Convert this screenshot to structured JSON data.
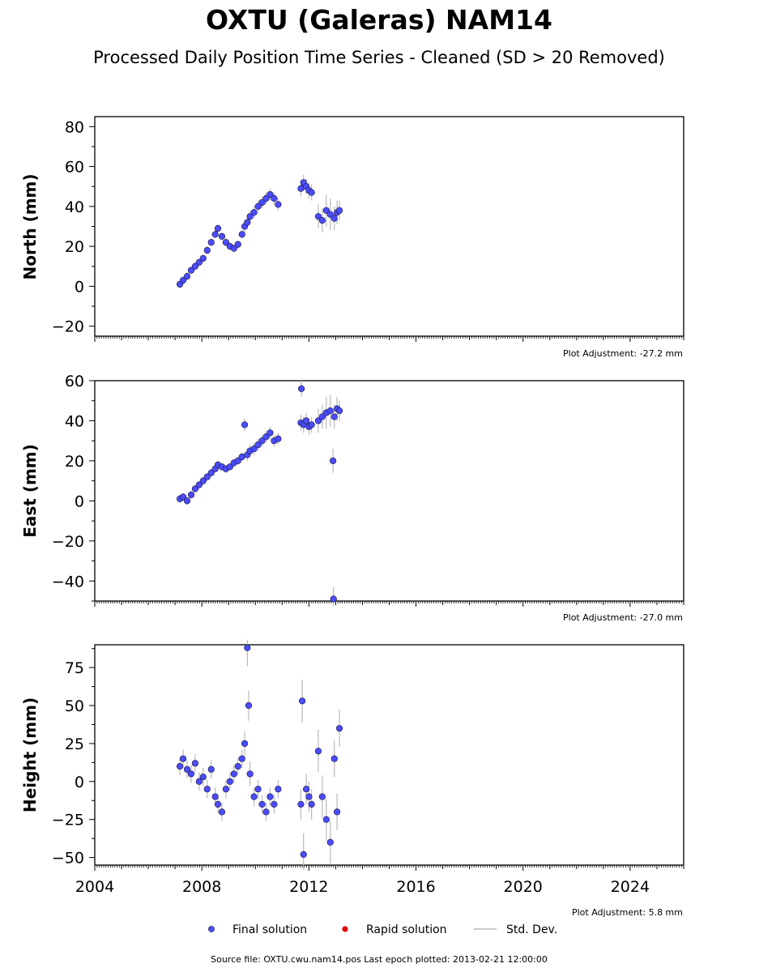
{
  "figure": {
    "title": "OXTU (Galeras) NAM14",
    "subtitle": "Processed Daily Position Time Series - Cleaned (SD > 20 Removed)",
    "source_note": "Source file: OXTU.cwu.nam14.pos  Last epoch plotted: 2013-02-21 12:00:00"
  },
  "legend": {
    "final_label": "Final solution",
    "rapid_label": "Rapid solution",
    "std_label": "Std. Dev."
  },
  "colors": {
    "final_fill": "#4b4bff",
    "final_edge": "#1a1a3a",
    "rapid_fill": "#e00000",
    "std_dev": "#b8b8b8"
  },
  "chart_data": [
    {
      "type": "scatter",
      "ylabel": "North (mm)",
      "plot_adjustment": "Plot Adjustment: -27.2 mm",
      "xlim": [
        2004.0,
        2026.0
      ],
      "ylim": [
        -25,
        85
      ],
      "yticks": [
        -20,
        0,
        20,
        40,
        60,
        80
      ],
      "ytick_labels": [
        "−20",
        "0",
        "20",
        "40",
        "60",
        "80"
      ],
      "x_tick_labels_visible": false,
      "series": [
        {
          "name": "Final solution",
          "x": [
            2007.18,
            2007.3,
            2007.45,
            2007.6,
            2007.75,
            2007.9,
            2008.05,
            2008.2,
            2008.35,
            2008.5,
            2008.6,
            2008.75,
            2008.9,
            2009.05,
            2009.2,
            2009.35,
            2009.5,
            2009.6,
            2009.7,
            2009.8,
            2009.95,
            2010.1,
            2010.25,
            2010.4,
            2010.55,
            2010.7,
            2010.85,
            2011.7,
            2011.8,
            2011.9,
            2012.0,
            2012.1,
            2012.35,
            2012.5,
            2012.65,
            2012.8,
            2012.95,
            2013.05,
            2013.14
          ],
          "y": [
            1,
            3,
            5,
            8,
            10,
            12,
            14,
            18,
            22,
            26,
            29,
            25,
            22,
            20,
            19,
            21,
            26,
            30,
            32,
            35,
            37,
            40,
            42,
            44,
            46,
            44,
            41,
            49,
            52,
            50,
            48,
            47,
            35,
            33,
            38,
            36,
            34,
            37,
            38
          ],
          "sd": [
            2,
            2,
            2,
            2,
            2,
            2,
            2,
            2,
            2,
            2,
            2,
            2,
            2,
            2,
            2,
            2,
            2,
            3,
            3,
            3,
            3,
            3,
            3,
            3,
            3,
            3,
            3,
            4,
            4,
            4,
            4,
            4,
            6,
            6,
            8,
            8,
            6,
            6,
            5
          ]
        }
      ]
    },
    {
      "type": "scatter",
      "ylabel": "East (mm)",
      "plot_adjustment": "Plot Adjustment: -27.0 mm",
      "xlim": [
        2004.0,
        2026.0
      ],
      "ylim": [
        -50,
        60
      ],
      "yticks": [
        -40,
        -20,
        0,
        20,
        40,
        60
      ],
      "ytick_labels": [
        "−40",
        "−20",
        "0",
        "20",
        "40",
        "60"
      ],
      "x_tick_labels_visible": false,
      "series": [
        {
          "name": "Final solution",
          "x": [
            2007.18,
            2007.3,
            2007.45,
            2007.6,
            2007.75,
            2007.9,
            2008.05,
            2008.2,
            2008.35,
            2008.5,
            2008.6,
            2008.75,
            2008.9,
            2009.05,
            2009.2,
            2009.35,
            2009.5,
            2009.6,
            2009.7,
            2009.8,
            2009.95,
            2010.1,
            2010.25,
            2010.4,
            2010.55,
            2010.7,
            2010.85,
            2011.7,
            2011.8,
            2011.9,
            2012.0,
            2012.1,
            2012.35,
            2012.5,
            2012.65,
            2012.8,
            2012.95,
            2013.05,
            2013.14,
            2011.72,
            2012.9,
            2012.92
          ],
          "y": [
            1,
            2,
            0,
            3,
            6,
            8,
            10,
            12,
            14,
            16,
            18,
            17,
            16,
            17,
            19,
            20,
            22,
            38,
            23,
            25,
            26,
            28,
            30,
            32,
            34,
            30,
            31,
            39,
            38,
            40,
            37,
            38,
            40,
            42,
            44,
            45,
            42,
            46,
            45,
            56,
            20,
            -49
          ],
          "sd": [
            2,
            2,
            2,
            2,
            2,
            2,
            2,
            2,
            2,
            2,
            2,
            2,
            2,
            2,
            2,
            2,
            2,
            3,
            3,
            3,
            3,
            3,
            3,
            3,
            3,
            3,
            3,
            4,
            4,
            4,
            4,
            4,
            6,
            6,
            8,
            8,
            6,
            6,
            5,
            4,
            6,
            6
          ]
        }
      ]
    },
    {
      "type": "scatter",
      "ylabel": "Height (mm)",
      "plot_adjustment": "Plot Adjustment: 5.8 mm",
      "xlim": [
        2004.0,
        2026.0
      ],
      "ylim": [
        -55,
        90
      ],
      "yticks": [
        -50,
        -25,
        0,
        25,
        50,
        75
      ],
      "ytick_labels": [
        "−50",
        "−25",
        "0",
        "25",
        "50",
        "75"
      ],
      "xticks": [
        2004,
        2008,
        2012,
        2016,
        2020,
        2024
      ],
      "xtick_labels": [
        "2004",
        "2008",
        "2012",
        "2016",
        "2020",
        "2024"
      ],
      "x_tick_labels_visible": true,
      "series": [
        {
          "name": "Final solution",
          "x": [
            2007.18,
            2007.3,
            2007.45,
            2007.6,
            2007.75,
            2007.9,
            2008.05,
            2008.2,
            2008.35,
            2008.5,
            2008.6,
            2008.75,
            2008.9,
            2009.05,
            2009.2,
            2009.35,
            2009.5,
            2009.6,
            2009.7,
            2009.75,
            2009.8,
            2009.95,
            2010.1,
            2010.25,
            2010.4,
            2010.55,
            2010.7,
            2010.85,
            2011.7,
            2011.75,
            2011.8,
            2011.9,
            2012.0,
            2012.1,
            2012.35,
            2012.5,
            2012.65,
            2012.8,
            2012.95,
            2013.05,
            2013.14
          ],
          "y": [
            10,
            15,
            8,
            5,
            12,
            0,
            3,
            -5,
            8,
            -10,
            -15,
            -20,
            -5,
            0,
            5,
            10,
            15,
            25,
            88,
            50,
            5,
            -10,
            -5,
            -15,
            -20,
            -10,
            -15,
            -5,
            -15,
            53,
            -48,
            -5,
            -10,
            -15,
            20,
            -10,
            -25,
            -40,
            15,
            -20,
            35
          ],
          "sd": [
            6,
            6,
            6,
            6,
            6,
            6,
            6,
            6,
            6,
            6,
            6,
            6,
            6,
            6,
            6,
            6,
            6,
            8,
            12,
            10,
            8,
            6,
            6,
            6,
            6,
            6,
            6,
            6,
            10,
            14,
            14,
            10,
            10,
            10,
            14,
            14,
            14,
            14,
            12,
            12,
            12
          ]
        }
      ]
    }
  ]
}
